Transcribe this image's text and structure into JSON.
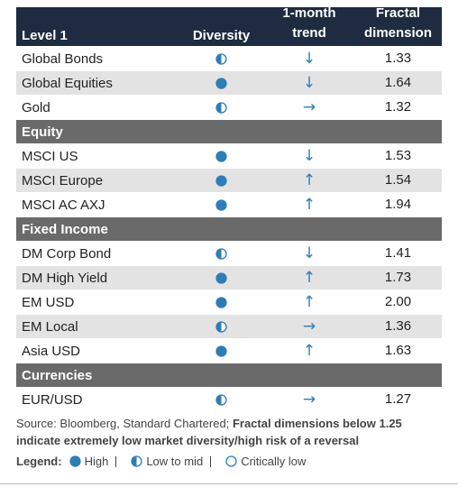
{
  "header": {
    "columns": [
      "Level 1",
      "Diversity",
      "1-month trend",
      "Fractal dimension"
    ]
  },
  "groups": [
    {
      "rows": [
        {
          "name": "Global Bonds",
          "diversity": "Low to mid",
          "trend": "↓",
          "fractal": "1.33"
        },
        {
          "name": "Global Equities",
          "diversity": "High",
          "trend": "↓",
          "fractal": "1.64"
        },
        {
          "name": "Gold",
          "diversity": "Low to mid",
          "trend": "→",
          "fractal": "1.32"
        }
      ]
    },
    {
      "title": "Equity",
      "rows": [
        {
          "name": "MSCI US",
          "diversity": "High",
          "trend": "↓",
          "fractal": "1.53"
        },
        {
          "name": "MSCI Europe",
          "diversity": "High",
          "trend": "↑",
          "fractal": "1.54"
        },
        {
          "name": "MSCI AC AXJ",
          "diversity": "High",
          "trend": "↑",
          "fractal": "1.94"
        }
      ]
    },
    {
      "title": "Fixed Income",
      "rows": [
        {
          "name": "DM Corp Bond",
          "diversity": "Low to mid",
          "trend": "↓",
          "fractal": "1.41"
        },
        {
          "name": "DM High Yield",
          "diversity": "High",
          "trend": "↑",
          "fractal": "1.73"
        },
        {
          "name": "EM USD",
          "diversity": "High",
          "trend": "↑",
          "fractal": "2.00"
        },
        {
          "name": "EM Local",
          "diversity": "Low to mid",
          "trend": "→",
          "fractal": "1.36"
        },
        {
          "name": "Asia USD",
          "diversity": "High",
          "trend": "↑",
          "fractal": "1.63"
        }
      ]
    },
    {
      "title": "Currencies",
      "rows": [
        {
          "name": "EUR/USD",
          "diversity": "Low to mid",
          "trend": "→",
          "fractal": "1.27"
        }
      ]
    }
  ],
  "source": {
    "text": "Source: Bloomberg, Standard Chartered;",
    "emphasis": "Fractal dimensions below 1.25 indicate extremely low market diversity/high risk of a reversal"
  },
  "legend": {
    "label": "Legend:",
    "items": [
      "High",
      "Low to mid",
      "Critically low"
    ]
  }
}
